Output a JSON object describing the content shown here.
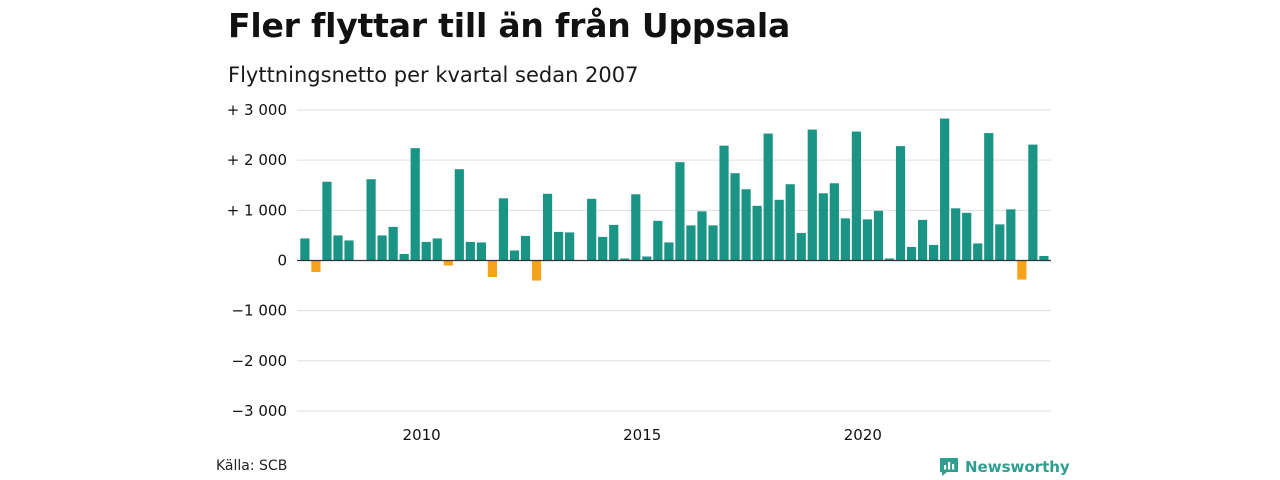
{
  "title": "Fler flyttar till än från Uppsala",
  "subtitle": "Flyttningsnetto per kvartal sedan 2007",
  "source": "Källa: SCB",
  "brand": "Newsworthy",
  "colors": {
    "positive": "#1a9484",
    "negative": "#f5a31a",
    "grid": "#dddddd",
    "brand": "#2e9e8e"
  },
  "chart_data": {
    "type": "bar",
    "title": "Fler flyttar till än från Uppsala",
    "subtitle": "Flyttningsnetto per kvartal sedan 2007",
    "ylim": [
      -3000,
      3000
    ],
    "yticks": [
      3000,
      2000,
      1000,
      0,
      -1000,
      -2000,
      -3000
    ],
    "ytick_labels": [
      "+ 3 000",
      "+ 2 000",
      "+ 1 000",
      "0",
      "−1 000",
      "−2 000",
      "−3 000"
    ],
    "xticks": [
      2010,
      2015,
      2020
    ],
    "x_start": "2007 Q2",
    "grid": true,
    "values": [
      440,
      -230,
      1570,
      500,
      400,
      0,
      1620,
      500,
      670,
      130,
      2240,
      370,
      440,
      -100,
      1820,
      370,
      360,
      -330,
      1240,
      200,
      490,
      -400,
      1330,
      570,
      560,
      0,
      1230,
      470,
      710,
      40,
      1320,
      80,
      790,
      360,
      1960,
      700,
      980,
      700,
      2290,
      1740,
      1420,
      1090,
      2530,
      1210,
      1520,
      550,
      2610,
      1340,
      1540,
      840,
      2570,
      820,
      990,
      40,
      2280,
      270,
      810,
      310,
      2830,
      1040,
      950,
      340,
      2540,
      720,
      1020,
      -380,
      2310,
      90
    ]
  }
}
